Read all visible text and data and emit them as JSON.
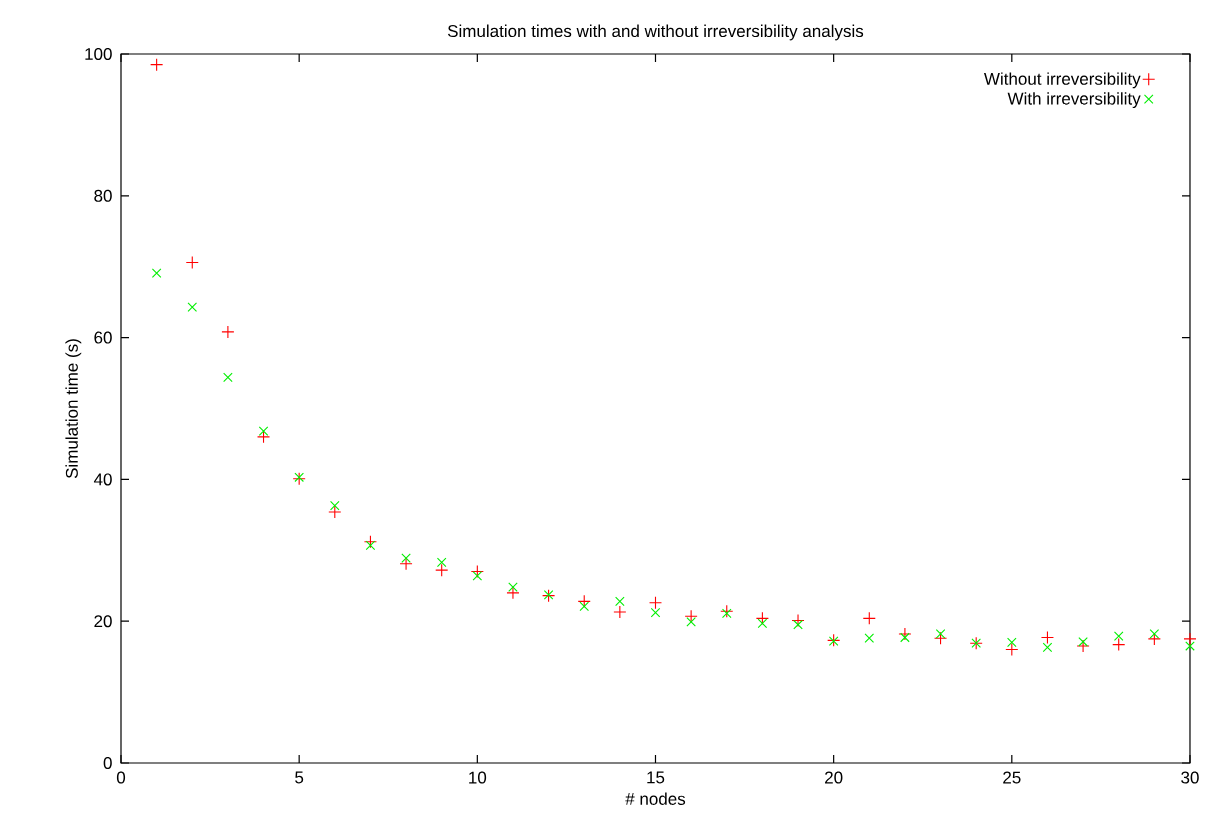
{
  "chart_data": {
    "type": "scatter",
    "title": "Simulation times with and without irreversibility analysis",
    "xlabel": "# nodes",
    "ylabel": "Simulation time (s)",
    "x": [
      1,
      2,
      3,
      4,
      5,
      6,
      7,
      8,
      9,
      10,
      11,
      12,
      13,
      14,
      15,
      16,
      17,
      18,
      19,
      20,
      21,
      22,
      23,
      24,
      25,
      26,
      27,
      28,
      29,
      30
    ],
    "series": [
      {
        "name": "Without irreversibility",
        "color": "#ff0000",
        "marker": "cross",
        "values": [
          98.5,
          70.6,
          60.8,
          46.0,
          40.1,
          35.4,
          31.2,
          28.1,
          27.2,
          27.0,
          24.0,
          23.6,
          22.8,
          21.3,
          22.6,
          20.7,
          21.4,
          20.4,
          20.1,
          17.3,
          20.4,
          18.2,
          17.6,
          16.9,
          16.0,
          17.7,
          16.5,
          16.7,
          17.5,
          17.5
        ]
      },
      {
        "name": "With irreversibility",
        "color": "#00ee00",
        "marker": "x",
        "values": [
          69.1,
          64.3,
          54.4,
          46.8,
          40.3,
          36.3,
          30.7,
          28.9,
          28.3,
          26.4,
          24.8,
          23.7,
          22.1,
          22.8,
          21.2,
          19.9,
          21.1,
          19.7,
          19.5,
          17.2,
          17.6,
          17.7,
          18.2,
          16.9,
          17.0,
          16.3,
          17.1,
          17.9,
          18.2,
          16.5
        ]
      }
    ],
    "xlim": [
      0,
      30
    ],
    "ylim": [
      0,
      100
    ],
    "xticks": [
      0,
      5,
      10,
      15,
      20,
      25,
      30
    ],
    "yticks": [
      0,
      20,
      40,
      60,
      80,
      100
    ],
    "grid": false,
    "legend": "top right"
  }
}
